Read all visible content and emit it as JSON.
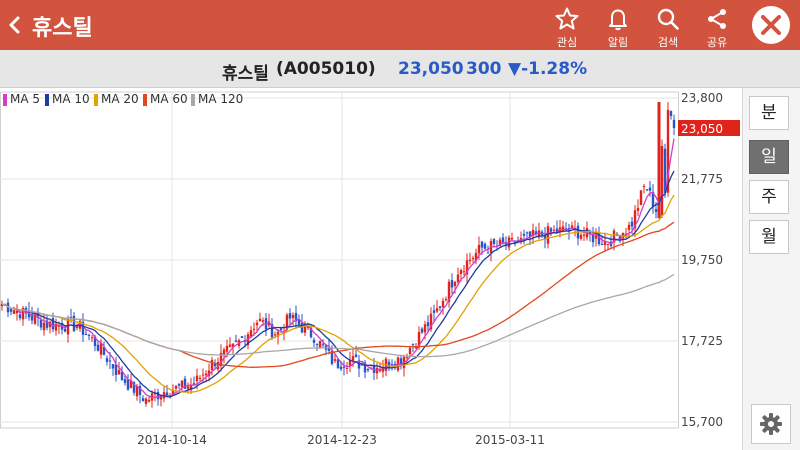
{
  "header": {
    "title": "휴스틸",
    "actions": [
      {
        "icon": "star-icon",
        "label": "관심"
      },
      {
        "icon": "bell-icon",
        "label": "알림"
      },
      {
        "icon": "search-icon",
        "label": "검색"
      },
      {
        "icon": "share-icon",
        "label": "공유"
      }
    ]
  },
  "quote": {
    "name": "휴스틸",
    "code": "(A005010)",
    "price": "23,050",
    "change": "300",
    "change_pct": "▼-1.28%",
    "color_down": "#2a59c8"
  },
  "legend": [
    {
      "label": "MA 5",
      "color": "#d63cc6"
    },
    {
      "label": "MA 10",
      "color": "#1d3c9e"
    },
    {
      "label": "MA 20",
      "color": "#e2a200"
    },
    {
      "label": "MA 60",
      "color": "#e2481f"
    },
    {
      "label": "MA 120",
      "color": "#a8a8a8"
    }
  ],
  "periods": [
    {
      "label": "분",
      "active": false
    },
    {
      "label": "일",
      "active": true
    },
    {
      "label": "주",
      "active": false
    },
    {
      "label": "월",
      "active": false
    }
  ],
  "chart_data": {
    "type": "candlestick",
    "ylim": [
      15700,
      23800
    ],
    "yticks": [
      "23,800",
      "21,775",
      "19,750",
      "17,725",
      "15,700"
    ],
    "xticks": [
      "2014-10-14",
      "2014-12-23",
      "2015-03-11"
    ],
    "current_price_label": "23,050",
    "colors": {
      "up": "#e0241c",
      "down": "#2a55c8",
      "current": "#e0241c"
    },
    "grid": true
  }
}
